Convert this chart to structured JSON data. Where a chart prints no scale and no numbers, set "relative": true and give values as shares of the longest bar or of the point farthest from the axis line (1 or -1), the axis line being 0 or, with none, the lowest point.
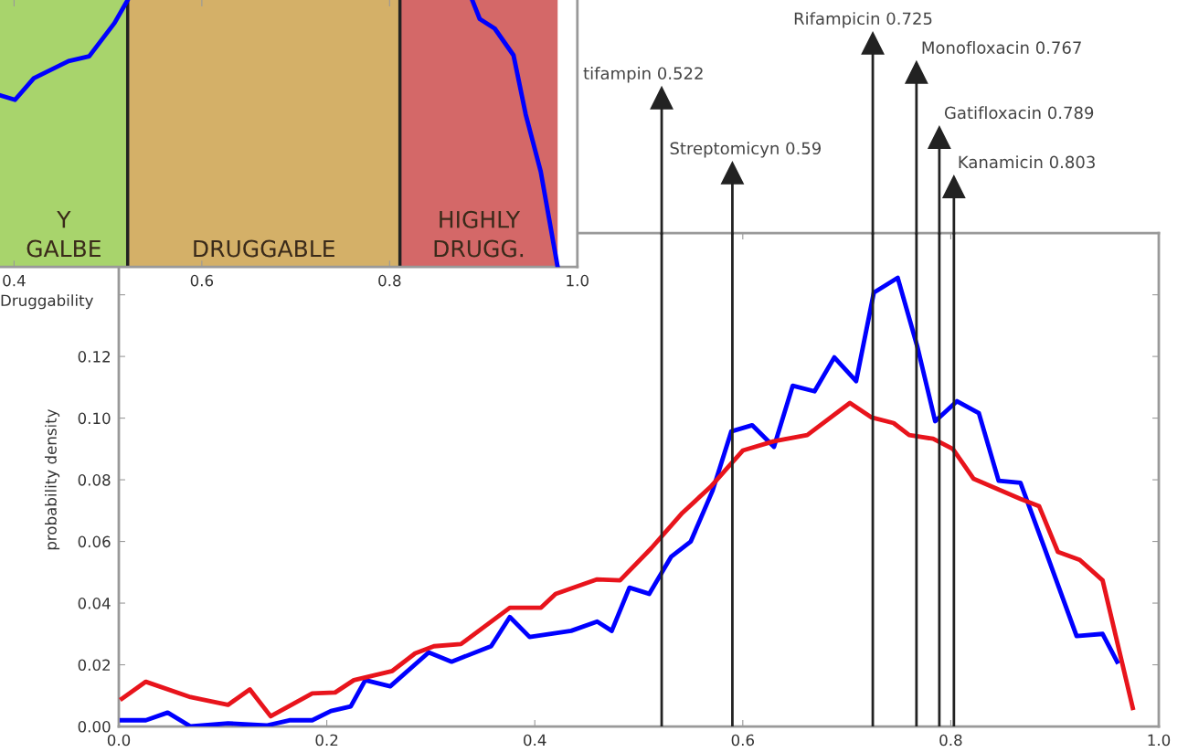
{
  "chart_data": [
    {
      "type": "line",
      "relative": true,
      "xlabel": "Druggability",
      "x": [
        0.385,
        0.401,
        0.421,
        0.458,
        0.48,
        0.507,
        0.521,
        0.7,
        0.888,
        0.896,
        0.912,
        0.932,
        0.945,
        0.961,
        0.979
      ],
      "series": [
        {
          "color": "#0000ff",
          "values": [
            0.643,
            0.626,
            0.707,
            0.771,
            0.789,
            0.914,
            1.0,
            null,
            1.0,
            0.929,
            0.893,
            0.793,
            0.571,
            0.357,
            0.0
          ]
        }
      ],
      "xlim": [
        0.385,
        1.0
      ],
      "xticks": [
        {
          "value": 0.4,
          "label": "0.4"
        },
        {
          "value": 0.6,
          "label": "0.6"
        },
        {
          "value": 0.8,
          "label": "0.8"
        },
        {
          "value": 1.0,
          "label": "1.0"
        }
      ],
      "bands": [
        {
          "axis": "x",
          "from": 0.385,
          "to": 0.521,
          "color": "#a8d46c",
          "label": "Y\nGALBE"
        },
        {
          "axis": "x",
          "from": 0.521,
          "to": 0.811,
          "color": "#d4b068",
          "label": "DRUGGABLE"
        },
        {
          "axis": "x",
          "from": 0.811,
          "to": 0.979,
          "color": "#d46868",
          "label": "HIGHLY\nDRUGG."
        }
      ],
      "ref_lines": [
        {
          "axis": "x",
          "value": 0.521,
          "color": "#222222"
        },
        {
          "axis": "x",
          "value": 0.811,
          "color": "#222222"
        }
      ],
      "tick_labels": "x"
    },
    {
      "type": "line",
      "ylabel": "probability density",
      "series": [
        {
          "color": "#0000ff",
          "x": [
            0.003,
            0.026,
            0.047,
            0.069,
            0.105,
            0.142,
            0.164,
            0.186,
            0.204,
            0.223,
            0.237,
            0.261,
            0.298,
            0.32,
            0.358,
            0.376,
            0.395,
            0.435,
            0.46,
            0.474,
            0.491,
            0.51,
            0.531,
            0.55,
            0.571,
            0.589,
            0.609,
            0.63,
            0.648,
            0.669,
            0.688,
            0.709,
            0.726,
            0.749,
            0.768,
            0.785,
            0.806,
            0.827,
            0.846,
            0.867,
            0.89,
            0.921,
            0.946,
            0.96
          ],
          "values": [
            0.002,
            0.002,
            0.0045,
            0.0,
            0.001,
            0.0003,
            0.002,
            0.002,
            0.005,
            0.0065,
            0.015,
            0.013,
            0.024,
            0.021,
            0.026,
            0.0355,
            0.029,
            0.031,
            0.034,
            0.031,
            0.045,
            0.043,
            0.055,
            0.06,
            0.0765,
            0.0957,
            0.0977,
            0.0907,
            0.1105,
            0.1087,
            0.1197,
            0.112,
            0.1407,
            0.1455,
            0.123,
            0.099,
            0.1055,
            0.1016,
            0.0797,
            0.079,
            0.058,
            0.0293,
            0.03,
            0.021
          ]
        },
        {
          "color": "#e8141c",
          "x": [
            0.003,
            0.026,
            0.069,
            0.105,
            0.126,
            0.146,
            0.186,
            0.208,
            0.226,
            0.263,
            0.285,
            0.303,
            0.329,
            0.376,
            0.406,
            0.42,
            0.46,
            0.482,
            0.512,
            0.542,
            0.569,
            0.6,
            0.63,
            0.662,
            0.703,
            0.724,
            0.745,
            0.76,
            0.783,
            0.802,
            0.822,
            0.867,
            0.885,
            0.903,
            0.924,
            0.946,
            0.975
          ],
          "values": [
            0.009,
            0.0145,
            0.0095,
            0.007,
            0.012,
            0.0033,
            0.0107,
            0.011,
            0.015,
            0.018,
            0.0237,
            0.026,
            0.0267,
            0.0385,
            0.0385,
            0.043,
            0.0477,
            0.0474,
            0.0578,
            0.0693,
            0.0777,
            0.0895,
            0.0925,
            0.0945,
            0.1049,
            0.1002,
            0.0984,
            0.0945,
            0.0933,
            0.09,
            0.0803,
            0.0738,
            0.0714,
            0.0566,
            0.054,
            0.0474,
            0.006
          ]
        }
      ],
      "xlim": [
        0.0,
        1.0
      ],
      "xticks": [
        {
          "value": 0.0,
          "label": "0.0"
        },
        {
          "value": 0.2,
          "label": "0.2"
        },
        {
          "value": 0.4,
          "label": "0.4"
        },
        {
          "value": 0.6,
          "label": "0.6"
        },
        {
          "value": 0.8,
          "label": "0.8"
        },
        {
          "value": 1.0,
          "label": "1.0"
        }
      ],
      "ylim": [
        0.0,
        0.16
      ],
      "yticks": [
        {
          "value": 0.0,
          "label": "0.00"
        },
        {
          "value": 0.02,
          "label": "0.02"
        },
        {
          "value": 0.04,
          "label": "0.04"
        },
        {
          "value": 0.06,
          "label": "0.06"
        },
        {
          "value": 0.08,
          "label": "0.08"
        },
        {
          "value": 0.1,
          "label": "0.10"
        },
        {
          "value": 0.12,
          "label": "0.12"
        },
        {
          "value": 0.14,
          "label": null
        },
        {
          "value": 0.16,
          "label": null
        }
      ],
      "ref_lines": [
        {
          "axis": "x",
          "value": 0.522,
          "label": "tifampin 0.522",
          "color": "#222222"
        },
        {
          "axis": "x",
          "value": 0.59,
          "label": "Streptomicyn 0.59",
          "color": "#222222"
        },
        {
          "axis": "x",
          "value": 0.725,
          "label": "Rifampicin 0.725",
          "color": "#222222"
        },
        {
          "axis": "x",
          "value": 0.767,
          "label": "Monofloxacin 0.767",
          "color": "#222222"
        },
        {
          "axis": "x",
          "value": 0.789,
          "label": "Gatifloxacin 0.789",
          "color": "#222222"
        },
        {
          "axis": "x",
          "value": 0.803,
          "label": "Kanamicin 0.803",
          "color": "#222222"
        }
      ]
    }
  ]
}
